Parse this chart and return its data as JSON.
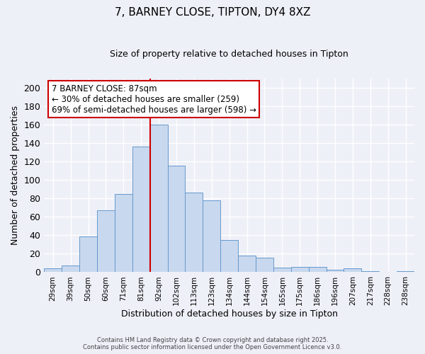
{
  "title": "7, BARNEY CLOSE, TIPTON, DY4 8XZ",
  "subtitle": "Size of property relative to detached houses in Tipton",
  "xlabel": "Distribution of detached houses by size in Tipton",
  "ylabel": "Number of detached properties",
  "bin_labels": [
    "29sqm",
    "39sqm",
    "50sqm",
    "60sqm",
    "71sqm",
    "81sqm",
    "92sqm",
    "102sqm",
    "113sqm",
    "123sqm",
    "134sqm",
    "144sqm",
    "154sqm",
    "165sqm",
    "175sqm",
    "186sqm",
    "196sqm",
    "207sqm",
    "217sqm",
    "228sqm",
    "238sqm"
  ],
  "bar_heights": [
    4,
    7,
    39,
    67,
    85,
    136,
    160,
    115,
    86,
    78,
    35,
    18,
    16,
    5,
    6,
    6,
    3,
    4,
    1,
    0,
    1
  ],
  "bar_color": "#c8d8ee",
  "bar_edgecolor": "#6699cc",
  "vline_x": 5.5,
  "vline_color": "#cc0000",
  "annotation_title": "7 BARNEY CLOSE: 87sqm",
  "annotation_line1": "← 30% of detached houses are smaller (259)",
  "annotation_line2": "69% of semi-detached houses are larger (598) →",
  "annotation_box_facecolor": "#ffffff",
  "annotation_box_edgecolor": "#cc0000",
  "ylim": [
    0,
    210
  ],
  "yticks": [
    0,
    20,
    40,
    60,
    80,
    100,
    120,
    140,
    160,
    180,
    200
  ],
  "footer_line1": "Contains HM Land Registry data © Crown copyright and database right 2025.",
  "footer_line2": "Contains public sector information licensed under the Open Government Licence v3.0.",
  "bg_color": "#eef0f8",
  "plot_bg_color": "#eef0f8",
  "grid_color": "#ffffff",
  "title_fontsize": 11,
  "subtitle_fontsize": 9
}
